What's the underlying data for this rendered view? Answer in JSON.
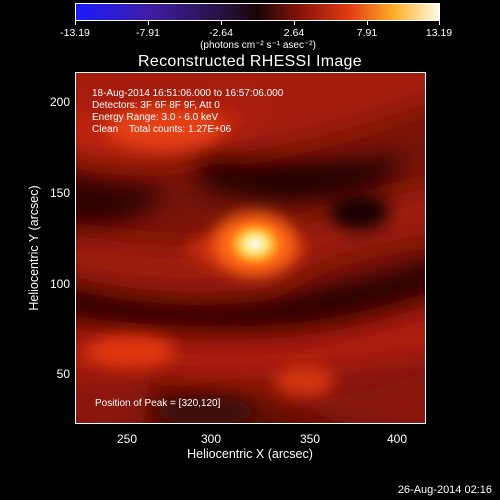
{
  "colorbar": {
    "ticks": [
      "-13.19",
      "-7.91",
      "-2.64",
      "2.64",
      "7.91",
      "13.19"
    ],
    "units_label": "(photons cm⁻² s⁻¹ asec⁻²)",
    "colors": [
      "#1a1aff",
      "#3f1da7",
      "#241038",
      "#2c0403",
      "#a9180c",
      "#f04b12",
      "#ffb12b",
      "#fffbe4"
    ]
  },
  "title": "Reconstructed RHESSI Image",
  "info": {
    "time_range": "18-Aug-2014 16:51:06.000 to 16:57:06.000",
    "detectors": "Detectors: 3F 6F 8F 9F, Att 0",
    "energy_range": "Energy Range: 3.0 - 6.0 keV",
    "clean_counts": "Clean    Total counts: 1.27E+06"
  },
  "peak_label": "Position of Peak = [320,120]",
  "axes": {
    "xlabel": "Heliocentric X (arcsec)",
    "ylabel": "Heliocentric Y (arcsec)",
    "xticks": [
      "250",
      "300",
      "350",
      "400"
    ],
    "yticks": [
      "200",
      "150",
      "100",
      "50"
    ],
    "xlim": [
      222,
      414
    ],
    "ylim": [
      25,
      221
    ]
  },
  "timestamp": "26-Aug-2014 02:16"
}
